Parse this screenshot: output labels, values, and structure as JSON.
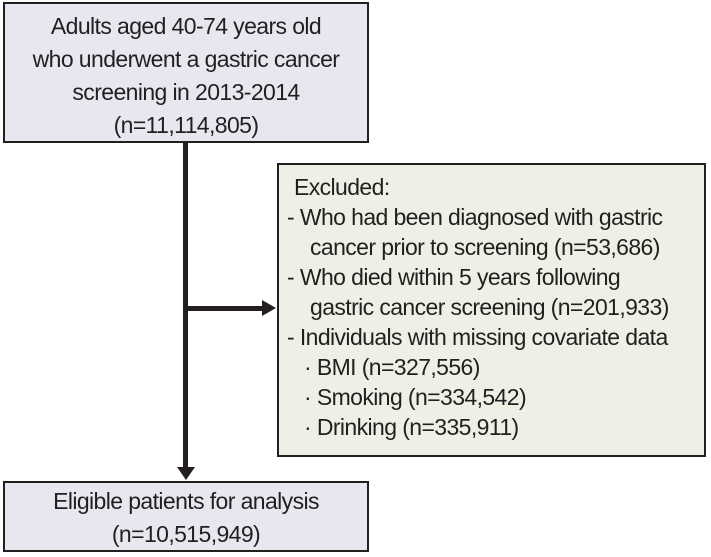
{
  "colors": {
    "background": "#ffffff",
    "population_box_fill": "#e7e7f0",
    "eligible_box_fill": "#e7e7f0",
    "excluded_box_fill": "#eef0e5",
    "border": "#231f20",
    "arrow": "#231f20",
    "text": "#231f20"
  },
  "population_box": {
    "lines": [
      "Adults aged 40-74 years old",
      "who underwent a gastric cancer",
      "screening in 2013-2014",
      "(n=11,114,805)"
    ],
    "n": "11,114,805"
  },
  "excluded_box": {
    "lines": [
      "Excluded:",
      "- Who had been diagnosed with gastric",
      "cancer prior to screening (n=53,686)",
      "- Who died within 5 years following",
      "gastric cancer screening (n=201,933)",
      "- Individuals with missing covariate data",
      "· BMI (n=327,556)",
      "· Smoking (n=334,542)",
      "· Drinking (n=335,911)"
    ],
    "n_gastric_cancer_prior": "53,686",
    "n_died_within_5_years": "201,933",
    "n_missing_bmi": "327,556",
    "n_missing_smoking": "334,542",
    "n_missing_drinking": "335,911"
  },
  "eligible_box": {
    "lines": [
      "Eligible patients for analysis",
      "(n=10,515,949)"
    ],
    "n": "10,515,949"
  }
}
